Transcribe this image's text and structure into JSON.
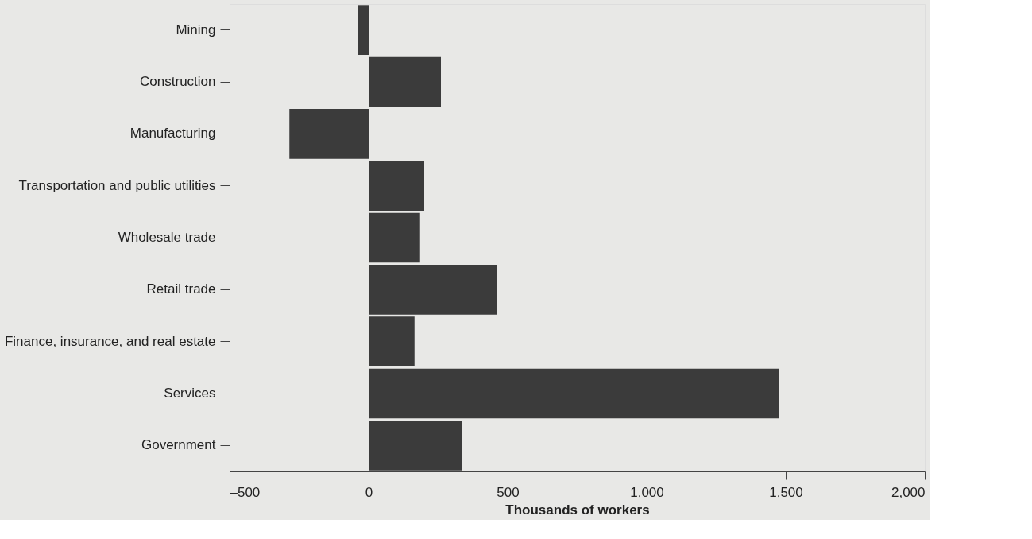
{
  "chart_data": {
    "type": "bar",
    "orientation": "horizontal",
    "xlabel": "Thousands of workers",
    "categories": [
      "Mining",
      "Construction",
      "Manufacturing",
      "Transportation and public utilities",
      "Wholesale trade",
      "Retail trade",
      "Finance, insurance, and real estate",
      "Services",
      "Government"
    ],
    "values": [
      -40,
      260,
      -285,
      200,
      185,
      460,
      165,
      1475,
      335
    ],
    "color": "#3b3b3b",
    "xlim": [
      -500,
      2000
    ],
    "xticks": [
      {
        "value": -500,
        "label": "–500"
      },
      {
        "value": -250,
        "label": null
      },
      {
        "value": 0,
        "label": "0"
      },
      {
        "value": 250,
        "label": null
      },
      {
        "value": 500,
        "label": "500"
      },
      {
        "value": 750,
        "label": null
      },
      {
        "value": 1000,
        "label": "1,000"
      },
      {
        "value": 1250,
        "label": null
      },
      {
        "value": 1500,
        "label": "1,500"
      },
      {
        "value": 1750,
        "label": null
      },
      {
        "value": 2000,
        "label": "2,000"
      }
    ],
    "grid": false
  }
}
